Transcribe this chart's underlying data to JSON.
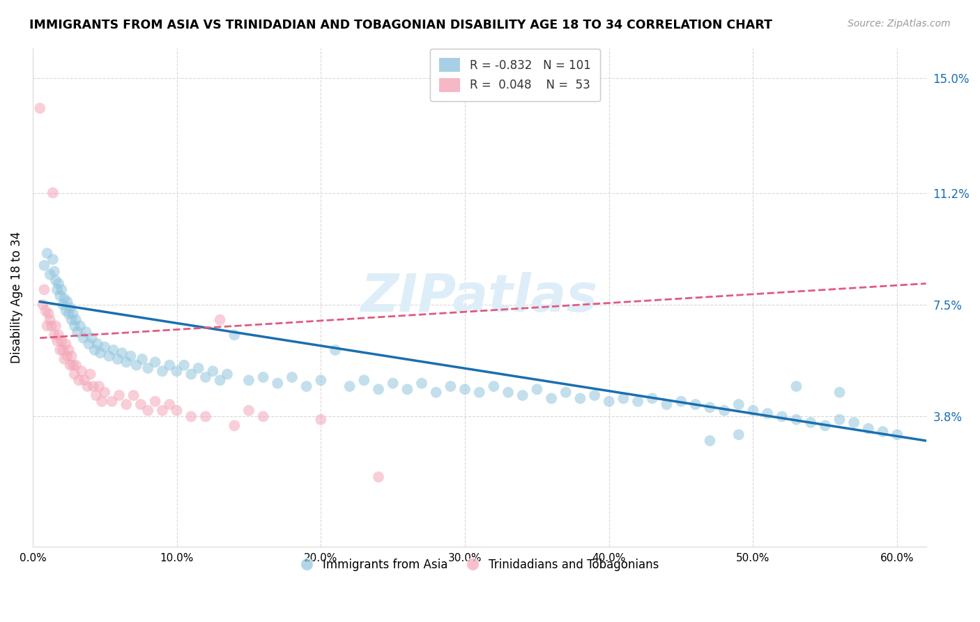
{
  "title": "IMMIGRANTS FROM ASIA VS TRINIDADIAN AND TOBAGONIAN DISABILITY AGE 18 TO 34 CORRELATION CHART",
  "source": "Source: ZipAtlas.com",
  "ylabel": "Disability Age 18 to 34",
  "xlim": [
    0.0,
    0.62
  ],
  "ylim": [
    -0.005,
    0.16
  ],
  "xtick_labels": [
    "0.0%",
    "10.0%",
    "20.0%",
    "30.0%",
    "40.0%",
    "50.0%",
    "60.0%"
  ],
  "xtick_values": [
    0.0,
    0.1,
    0.2,
    0.3,
    0.4,
    0.5,
    0.6
  ],
  "ytick_right_labels": [
    "3.8%",
    "7.5%",
    "11.2%",
    "15.0%"
  ],
  "ytick_right_values": [
    0.038,
    0.075,
    0.112,
    0.15
  ],
  "legend_blue_r": "-0.832",
  "legend_blue_n": "101",
  "legend_pink_r": "0.048",
  "legend_pink_n": "53",
  "legend_label_blue": "Immigrants from Asia",
  "legend_label_pink": "Trinidadians and Tobagonians",
  "blue_color": "#92c5de",
  "pink_color": "#f4a6b8",
  "blue_line_color": "#1a6faf",
  "pink_line_color": "#e05a80",
  "watermark": "ZIPatlas",
  "watermark_color": "#ddeef8",
  "blue_line_x0": 0.005,
  "blue_line_y0": 0.076,
  "blue_line_x1": 0.62,
  "blue_line_y1": 0.03,
  "pink_line_x0": 0.005,
  "pink_line_y0": 0.064,
  "pink_line_x1": 0.62,
  "pink_line_y1": 0.082,
  "blue_scatter_x": [
    0.008,
    0.01,
    0.012,
    0.014,
    0.015,
    0.016,
    0.017,
    0.018,
    0.019,
    0.02,
    0.021,
    0.022,
    0.023,
    0.024,
    0.025,
    0.026,
    0.027,
    0.028,
    0.029,
    0.03,
    0.031,
    0.033,
    0.035,
    0.037,
    0.039,
    0.041,
    0.043,
    0.045,
    0.047,
    0.05,
    0.053,
    0.056,
    0.059,
    0.062,
    0.065,
    0.068,
    0.072,
    0.076,
    0.08,
    0.085,
    0.09,
    0.095,
    0.1,
    0.105,
    0.11,
    0.115,
    0.12,
    0.125,
    0.13,
    0.135,
    0.14,
    0.15,
    0.16,
    0.17,
    0.18,
    0.19,
    0.2,
    0.21,
    0.22,
    0.23,
    0.24,
    0.25,
    0.26,
    0.27,
    0.28,
    0.29,
    0.3,
    0.31,
    0.32,
    0.33,
    0.34,
    0.35,
    0.36,
    0.37,
    0.38,
    0.39,
    0.4,
    0.41,
    0.42,
    0.43,
    0.44,
    0.45,
    0.46,
    0.47,
    0.48,
    0.49,
    0.5,
    0.51,
    0.52,
    0.53,
    0.54,
    0.55,
    0.56,
    0.57,
    0.58,
    0.59,
    0.6,
    0.53,
    0.56,
    0.49,
    0.47
  ],
  "blue_scatter_y": [
    0.088,
    0.092,
    0.085,
    0.09,
    0.086,
    0.083,
    0.08,
    0.082,
    0.078,
    0.08,
    0.075,
    0.077,
    0.073,
    0.076,
    0.072,
    0.074,
    0.07,
    0.072,
    0.068,
    0.07,
    0.066,
    0.068,
    0.064,
    0.066,
    0.062,
    0.064,
    0.06,
    0.062,
    0.059,
    0.061,
    0.058,
    0.06,
    0.057,
    0.059,
    0.056,
    0.058,
    0.055,
    0.057,
    0.054,
    0.056,
    0.053,
    0.055,
    0.053,
    0.055,
    0.052,
    0.054,
    0.051,
    0.053,
    0.05,
    0.052,
    0.065,
    0.05,
    0.051,
    0.049,
    0.051,
    0.048,
    0.05,
    0.06,
    0.048,
    0.05,
    0.047,
    0.049,
    0.047,
    0.049,
    0.046,
    0.048,
    0.047,
    0.046,
    0.048,
    0.046,
    0.045,
    0.047,
    0.044,
    0.046,
    0.044,
    0.045,
    0.043,
    0.044,
    0.043,
    0.044,
    0.042,
    0.043,
    0.042,
    0.041,
    0.04,
    0.042,
    0.04,
    0.039,
    0.038,
    0.037,
    0.036,
    0.035,
    0.037,
    0.036,
    0.034,
    0.033,
    0.032,
    0.048,
    0.046,
    0.032,
    0.03
  ],
  "pink_scatter_x": [
    0.005,
    0.007,
    0.008,
    0.009,
    0.01,
    0.011,
    0.012,
    0.013,
    0.014,
    0.015,
    0.016,
    0.017,
    0.018,
    0.019,
    0.02,
    0.021,
    0.022,
    0.023,
    0.024,
    0.025,
    0.026,
    0.027,
    0.028,
    0.029,
    0.03,
    0.032,
    0.034,
    0.036,
    0.038,
    0.04,
    0.042,
    0.044,
    0.046,
    0.048,
    0.05,
    0.055,
    0.06,
    0.065,
    0.07,
    0.075,
    0.08,
    0.085,
    0.09,
    0.095,
    0.1,
    0.11,
    0.12,
    0.13,
    0.14,
    0.15,
    0.16,
    0.2,
    0.24
  ],
  "pink_scatter_y": [
    0.14,
    0.075,
    0.08,
    0.073,
    0.068,
    0.072,
    0.07,
    0.068,
    0.112,
    0.065,
    0.068,
    0.063,
    0.065,
    0.06,
    0.063,
    0.06,
    0.057,
    0.062,
    0.058,
    0.06,
    0.055,
    0.058,
    0.055,
    0.052,
    0.055,
    0.05,
    0.053,
    0.05,
    0.048,
    0.052,
    0.048,
    0.045,
    0.048,
    0.043,
    0.046,
    0.043,
    0.045,
    0.042,
    0.045,
    0.042,
    0.04,
    0.043,
    0.04,
    0.042,
    0.04,
    0.038,
    0.038,
    0.07,
    0.035,
    0.04,
    0.038,
    0.037,
    0.018
  ]
}
